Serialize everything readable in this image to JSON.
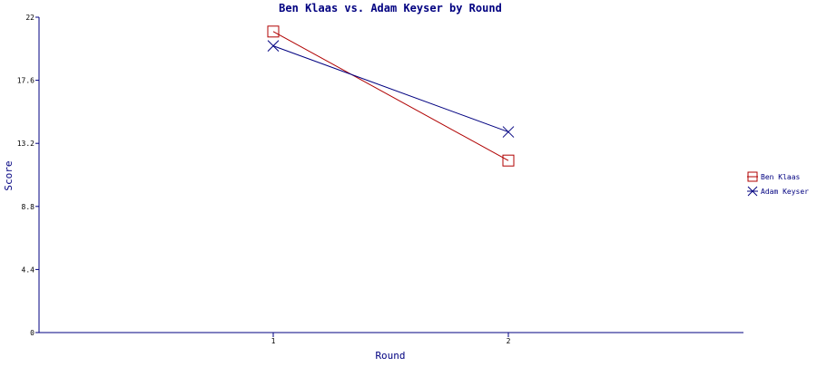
{
  "chart_data": {
    "type": "line",
    "title": "Ben Klaas vs. Adam Keyser by Round",
    "xlabel": "Round",
    "ylabel": "Score",
    "x": [
      1,
      2
    ],
    "x_tick_labels": [
      "1",
      "2"
    ],
    "ylim": [
      0,
      22
    ],
    "y_ticks": [
      "0",
      "4.4",
      "8.8",
      "13.2",
      "17.6",
      "22"
    ],
    "legend_position": "right",
    "series": [
      {
        "name": "Ben Klaas",
        "values": [
          21,
          12
        ],
        "color": "#b00000",
        "marker": "square"
      },
      {
        "name": "Adam Keyser",
        "values": [
          20,
          14
        ],
        "color": "#000080",
        "marker": "x"
      }
    ]
  }
}
